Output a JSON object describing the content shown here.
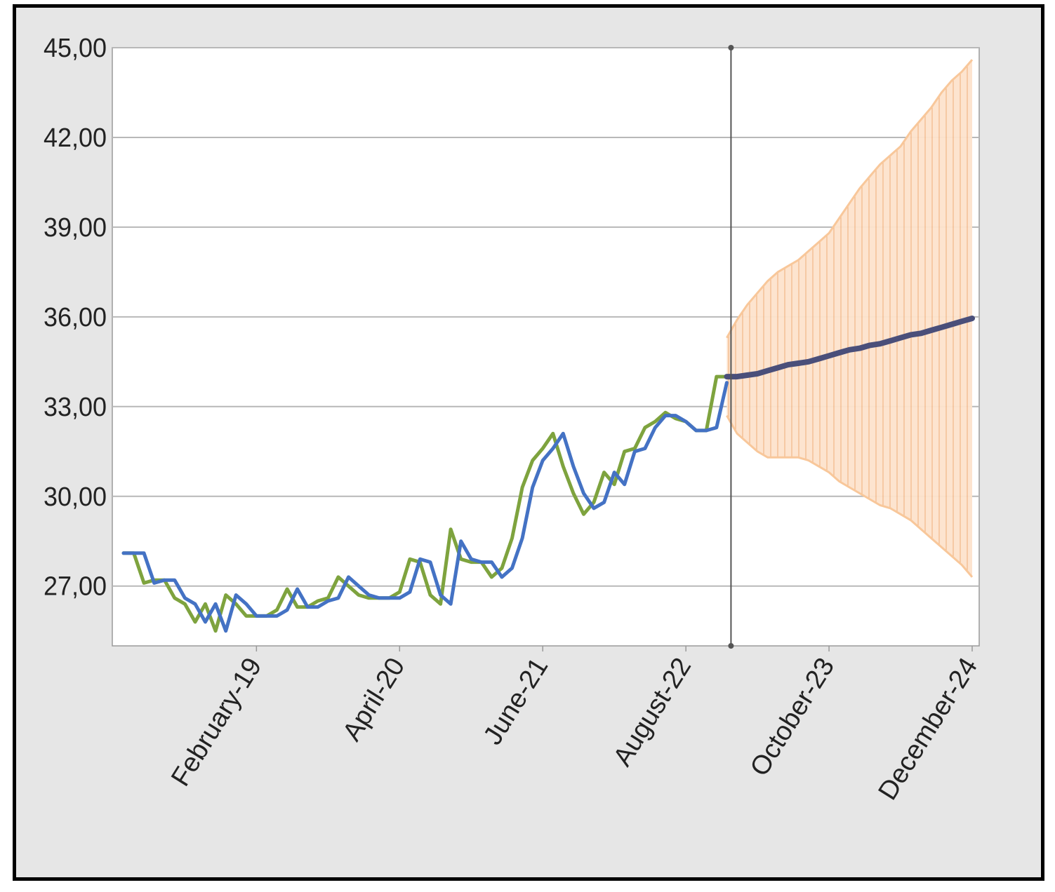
{
  "chart_data": {
    "type": "line",
    "title": "",
    "xlabel": "",
    "ylabel": "",
    "ylim": [
      25.0,
      45.0
    ],
    "y_ticks": [
      27,
      30,
      33,
      36,
      39,
      42,
      45
    ],
    "y_tick_labels": [
      "27,00",
      "30,00",
      "33,00",
      "36,00",
      "39,00",
      "42,00",
      "45,00"
    ],
    "x_tick_labels": [
      {
        "label": "February-19",
        "month": "2019-02"
      },
      {
        "label": "April-20",
        "month": "2020-04"
      },
      {
        "label": "June-21",
        "month": "2021-06"
      },
      {
        "label": "August-22",
        "month": "2022-08"
      },
      {
        "label": "October-23",
        "month": "2023-10"
      },
      {
        "label": "December-24",
        "month": "2024-12"
      }
    ],
    "x_range": [
      "2018-01",
      "2024-12"
    ],
    "forecast_start": "2022-12",
    "grid": true,
    "legend": "none",
    "series": [
      {
        "kind": "actual",
        "color": "#7ea33e",
        "points": [
          [
            "2018-01",
            28.1
          ],
          [
            "2018-02",
            28.1
          ],
          [
            "2018-03",
            27.1
          ],
          [
            "2018-04",
            27.2
          ],
          [
            "2018-05",
            27.2
          ],
          [
            "2018-06",
            26.6
          ],
          [
            "2018-07",
            26.4
          ],
          [
            "2018-08",
            25.8
          ],
          [
            "2018-09",
            26.4
          ],
          [
            "2018-10",
            25.5
          ],
          [
            "2018-11",
            26.7
          ],
          [
            "2018-12",
            26.4
          ],
          [
            "2019-01",
            26.0
          ],
          [
            "2019-02",
            26.0
          ],
          [
            "2019-03",
            26.0
          ],
          [
            "2019-04",
            26.2
          ],
          [
            "2019-05",
            26.9
          ],
          [
            "2019-06",
            26.3
          ],
          [
            "2019-07",
            26.3
          ],
          [
            "2019-08",
            26.5
          ],
          [
            "2019-09",
            26.6
          ],
          [
            "2019-10",
            27.3
          ],
          [
            "2019-11",
            27.0
          ],
          [
            "2019-12",
            26.7
          ],
          [
            "2020-01",
            26.6
          ],
          [
            "2020-02",
            26.6
          ],
          [
            "2020-03",
            26.6
          ],
          [
            "2020-04",
            26.8
          ],
          [
            "2020-05",
            27.9
          ],
          [
            "2020-06",
            27.8
          ],
          [
            "2020-07",
            26.7
          ],
          [
            "2020-08",
            26.4
          ],
          [
            "2020-09",
            28.9
          ],
          [
            "2020-10",
            27.9
          ],
          [
            "2020-11",
            27.8
          ],
          [
            "2020-12",
            27.8
          ],
          [
            "2021-01",
            27.3
          ],
          [
            "2021-02",
            27.6
          ],
          [
            "2021-03",
            28.6
          ],
          [
            "2021-04",
            30.3
          ],
          [
            "2021-05",
            31.2
          ],
          [
            "2021-06",
            31.6
          ],
          [
            "2021-07",
            32.1
          ],
          [
            "2021-08",
            31.0
          ],
          [
            "2021-09",
            30.1
          ],
          [
            "2021-10",
            29.4
          ],
          [
            "2021-11",
            29.8
          ],
          [
            "2021-12",
            30.8
          ],
          [
            "2022-01",
            30.4
          ],
          [
            "2022-02",
            31.5
          ],
          [
            "2022-03",
            31.6
          ],
          [
            "2022-04",
            32.3
          ],
          [
            "2022-05",
            32.5
          ],
          [
            "2022-06",
            32.8
          ],
          [
            "2022-07",
            32.6
          ],
          [
            "2022-08",
            32.5
          ],
          [
            "2022-09",
            32.2
          ],
          [
            "2022-10",
            32.2
          ],
          [
            "2022-11",
            34.0
          ],
          [
            "2022-12",
            34.0
          ]
        ]
      },
      {
        "kind": "fitted",
        "color": "#4472c4",
        "points": [
          [
            "2018-01",
            28.1
          ],
          [
            "2018-02",
            28.1
          ],
          [
            "2018-03",
            28.1
          ],
          [
            "2018-04",
            27.1
          ],
          [
            "2018-05",
            27.2
          ],
          [
            "2018-06",
            27.2
          ],
          [
            "2018-07",
            26.6
          ],
          [
            "2018-08",
            26.4
          ],
          [
            "2018-09",
            25.8
          ],
          [
            "2018-10",
            26.4
          ],
          [
            "2018-11",
            25.5
          ],
          [
            "2018-12",
            26.7
          ],
          [
            "2019-01",
            26.4
          ],
          [
            "2019-02",
            26.0
          ],
          [
            "2019-03",
            26.0
          ],
          [
            "2019-04",
            26.0
          ],
          [
            "2019-05",
            26.2
          ],
          [
            "2019-06",
            26.9
          ],
          [
            "2019-07",
            26.3
          ],
          [
            "2019-08",
            26.3
          ],
          [
            "2019-09",
            26.5
          ],
          [
            "2019-10",
            26.6
          ],
          [
            "2019-11",
            27.3
          ],
          [
            "2019-12",
            27.0
          ],
          [
            "2020-01",
            26.7
          ],
          [
            "2020-02",
            26.6
          ],
          [
            "2020-03",
            26.6
          ],
          [
            "2020-04",
            26.6
          ],
          [
            "2020-05",
            26.8
          ],
          [
            "2020-06",
            27.9
          ],
          [
            "2020-07",
            27.8
          ],
          [
            "2020-08",
            26.7
          ],
          [
            "2020-09",
            26.4
          ],
          [
            "2020-10",
            28.5
          ],
          [
            "2020-11",
            27.9
          ],
          [
            "2020-12",
            27.8
          ],
          [
            "2021-01",
            27.8
          ],
          [
            "2021-02",
            27.3
          ],
          [
            "2021-03",
            27.6
          ],
          [
            "2021-04",
            28.6
          ],
          [
            "2021-05",
            30.3
          ],
          [
            "2021-06",
            31.2
          ],
          [
            "2021-07",
            31.6
          ],
          [
            "2021-08",
            32.1
          ],
          [
            "2021-09",
            31.0
          ],
          [
            "2021-10",
            30.1
          ],
          [
            "2021-11",
            29.6
          ],
          [
            "2021-12",
            29.8
          ],
          [
            "2022-01",
            30.8
          ],
          [
            "2022-02",
            30.4
          ],
          [
            "2022-03",
            31.5
          ],
          [
            "2022-04",
            31.6
          ],
          [
            "2022-05",
            32.3
          ],
          [
            "2022-06",
            32.7
          ],
          [
            "2022-07",
            32.7
          ],
          [
            "2022-08",
            32.5
          ],
          [
            "2022-09",
            32.2
          ],
          [
            "2022-10",
            32.2
          ],
          [
            "2022-11",
            32.3
          ],
          [
            "2022-12",
            33.8
          ]
        ]
      },
      {
        "kind": "forecast",
        "color": "#4a4f7a",
        "points": [
          [
            "2022-12",
            34.0
          ],
          [
            "2023-01",
            34.0
          ],
          [
            "2023-02",
            34.05
          ],
          [
            "2023-03",
            34.1
          ],
          [
            "2023-04",
            34.2
          ],
          [
            "2023-05",
            34.3
          ],
          [
            "2023-06",
            34.4
          ],
          [
            "2023-07",
            34.45
          ],
          [
            "2023-08",
            34.5
          ],
          [
            "2023-09",
            34.6
          ],
          [
            "2023-10",
            34.7
          ],
          [
            "2023-11",
            34.8
          ],
          [
            "2023-12",
            34.9
          ],
          [
            "2024-01",
            34.95
          ],
          [
            "2024-02",
            35.05
          ],
          [
            "2024-03",
            35.1
          ],
          [
            "2024-04",
            35.2
          ],
          [
            "2024-05",
            35.3
          ],
          [
            "2024-06",
            35.4
          ],
          [
            "2024-07",
            35.45
          ],
          [
            "2024-08",
            35.55
          ],
          [
            "2024-09",
            35.65
          ],
          [
            "2024-10",
            35.75
          ],
          [
            "2024-11",
            35.85
          ],
          [
            "2024-12",
            35.95
          ]
        ]
      }
    ],
    "confidence_band": {
      "color": "#f8c79a",
      "upper": [
        [
          "2022-12",
          35.3
        ],
        [
          "2023-01",
          35.9
        ],
        [
          "2023-02",
          36.4
        ],
        [
          "2023-03",
          36.8
        ],
        [
          "2023-04",
          37.2
        ],
        [
          "2023-05",
          37.5
        ],
        [
          "2023-06",
          37.7
        ],
        [
          "2023-07",
          37.9
        ],
        [
          "2023-08",
          38.2
        ],
        [
          "2023-09",
          38.5
        ],
        [
          "2023-10",
          38.8
        ],
        [
          "2023-11",
          39.3
        ],
        [
          "2023-12",
          39.8
        ],
        [
          "2024-01",
          40.3
        ],
        [
          "2024-02",
          40.7
        ],
        [
          "2024-03",
          41.1
        ],
        [
          "2024-04",
          41.4
        ],
        [
          "2024-05",
          41.7
        ],
        [
          "2024-06",
          42.2
        ],
        [
          "2024-07",
          42.6
        ],
        [
          "2024-08",
          43.0
        ],
        [
          "2024-09",
          43.5
        ],
        [
          "2024-10",
          43.9
        ],
        [
          "2024-11",
          44.2
        ],
        [
          "2024-12",
          44.6
        ]
      ],
      "lower": [
        [
          "2022-12",
          32.7
        ],
        [
          "2023-01",
          32.1
        ],
        [
          "2023-02",
          31.8
        ],
        [
          "2023-03",
          31.5
        ],
        [
          "2023-04",
          31.3
        ],
        [
          "2023-05",
          31.3
        ],
        [
          "2023-06",
          31.3
        ],
        [
          "2023-07",
          31.3
        ],
        [
          "2023-08",
          31.2
        ],
        [
          "2023-09",
          31.0
        ],
        [
          "2023-10",
          30.8
        ],
        [
          "2023-11",
          30.5
        ],
        [
          "2023-12",
          30.3
        ],
        [
          "2024-01",
          30.1
        ],
        [
          "2024-02",
          29.9
        ],
        [
          "2024-03",
          29.7
        ],
        [
          "2024-04",
          29.6
        ],
        [
          "2024-05",
          29.4
        ],
        [
          "2024-06",
          29.2
        ],
        [
          "2024-07",
          28.9
        ],
        [
          "2024-08",
          28.6
        ],
        [
          "2024-09",
          28.3
        ],
        [
          "2024-10",
          28.0
        ],
        [
          "2024-11",
          27.7
        ],
        [
          "2024-12",
          27.3
        ]
      ]
    }
  }
}
